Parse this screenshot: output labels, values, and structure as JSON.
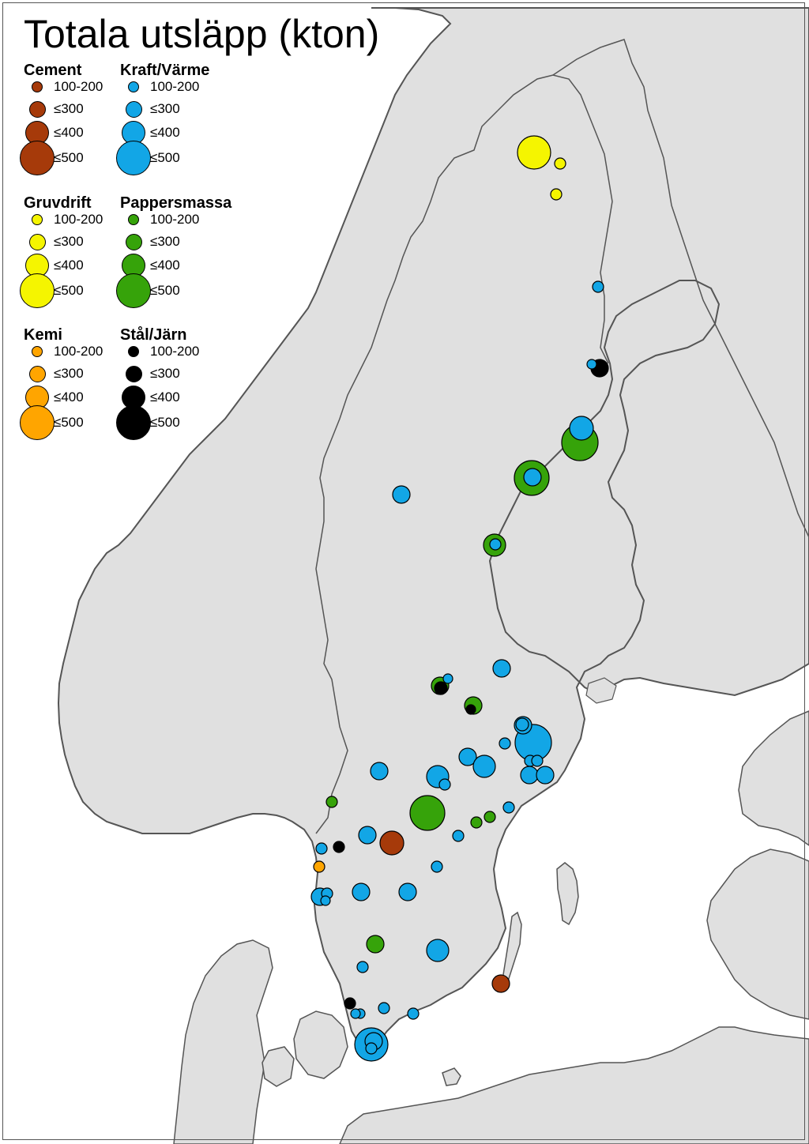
{
  "map": {
    "title": "Totala utsläpp (kton)",
    "colors": {
      "land": "#e0e0e0",
      "sea": "#ffffff",
      "coast": "#555555",
      "border": "#555555"
    }
  },
  "legend": {
    "size_labels": [
      "100-200",
      "≤300",
      "≤400",
      "≤500"
    ],
    "categories": [
      {
        "key": "cement",
        "name": "Cement",
        "color": "#a63a0a",
        "icon": "circle-icon"
      },
      {
        "key": "kraft",
        "name": "Kraft/Värme",
        "color": "#12a6e6",
        "icon": "circle-icon"
      },
      {
        "key": "gruv",
        "name": "Gruvdrift",
        "color": "#f5f500",
        "icon": "circle-icon"
      },
      {
        "key": "papper",
        "name": "Pappersmassa",
        "color": "#36a30a",
        "icon": "circle-icon"
      },
      {
        "key": "kemi",
        "name": "Kemi",
        "color": "#ffa500",
        "icon": "circle-icon"
      },
      {
        "key": "stal",
        "name": "Stål/Järn",
        "color": "#000000",
        "icon": "circle-icon"
      }
    ]
  }
}
